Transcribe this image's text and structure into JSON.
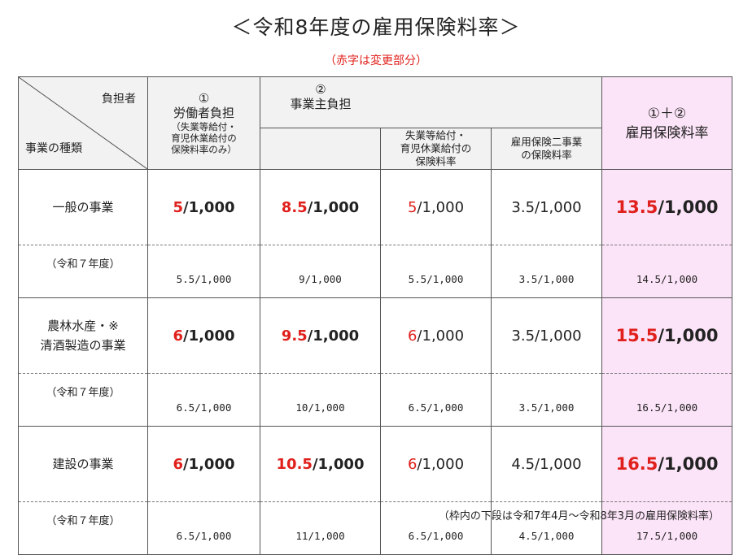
{
  "title": "＜令和8年度の雇用保険料率＞",
  "subtitle": "（赤字は変更部分）",
  "header": {
    "corner_top": "負担者",
    "corner_bottom": "事業の種類",
    "worker_num": "①",
    "worker_label": "労働者負担",
    "worker_note_1": "（失業等給付・",
    "worker_note_2": "育児休業給付の",
    "worker_note_3": "保険料率のみ）",
    "employer_num": "②",
    "employer_label": "事業主負担",
    "employer_sub1_line1": "失業等給付・",
    "employer_sub1_line2": "育児休業給付の",
    "employer_sub1_line3": "保険料率",
    "employer_sub2_line1": "雇用保険二事業",
    "employer_sub2_line2": "の保険料率",
    "total_num": "①＋②",
    "total_label": "雇用保険料率"
  },
  "rows": [
    {
      "name_1": "一般の事業",
      "name_2": "",
      "worker_red": "5",
      "worker_rest": "/1,000",
      "employer_red": "8.5",
      "employer_rest": "/1,000",
      "sub1_red": "5",
      "sub1_rest": "/1,000",
      "sub2": "3.5/1,000",
      "total_red": "13.5",
      "total_rest": "/1,000",
      "prev_label": "（令和７年度）",
      "prev_worker": "5.5/1,000",
      "prev_employer": "9/1,000",
      "prev_sub1": "5.5/1,000",
      "prev_sub2": "3.5/1,000",
      "prev_total": "14.5/1,000"
    },
    {
      "name_1": "農林水産・※",
      "name_2": "清酒製造の事業",
      "worker_red": "6",
      "worker_rest": "/1,000",
      "employer_red": "9.5",
      "employer_rest": "/1,000",
      "sub1_red": "6",
      "sub1_rest": "/1,000",
      "sub2": "3.5/1,000",
      "total_red": "15.5",
      "total_rest": "/1,000",
      "prev_label": "（令和７年度）",
      "prev_worker": "6.5/1,000",
      "prev_employer": "10/1,000",
      "prev_sub1": "6.5/1,000",
      "prev_sub2": "3.5/1,000",
      "prev_total": "16.5/1,000"
    },
    {
      "name_1": "建設の事業",
      "name_2": "",
      "worker_red": "6",
      "worker_rest": "/1,000",
      "employer_red": "10.5",
      "employer_rest": "/1,000",
      "sub1_red": "6",
      "sub1_rest": "/1,000",
      "sub2": "4.5/1,000",
      "total_red": "16.5",
      "total_rest": "/1,000",
      "prev_label": "（令和７年度）",
      "prev_worker": "6.5/1,000",
      "prev_employer": "11/1,000",
      "prev_sub1": "6.5/1,000",
      "prev_sub2": "4.5/1,000",
      "prev_total": "17.5/1,000"
    }
  ],
  "footnote": "（枠内の下段は令和7年4月～令和8年3月の雇用保険料率）",
  "colors": {
    "accent_red": "#e0201c",
    "total_bg": "#fce4f8",
    "header_bg": "#f2f2f2"
  }
}
